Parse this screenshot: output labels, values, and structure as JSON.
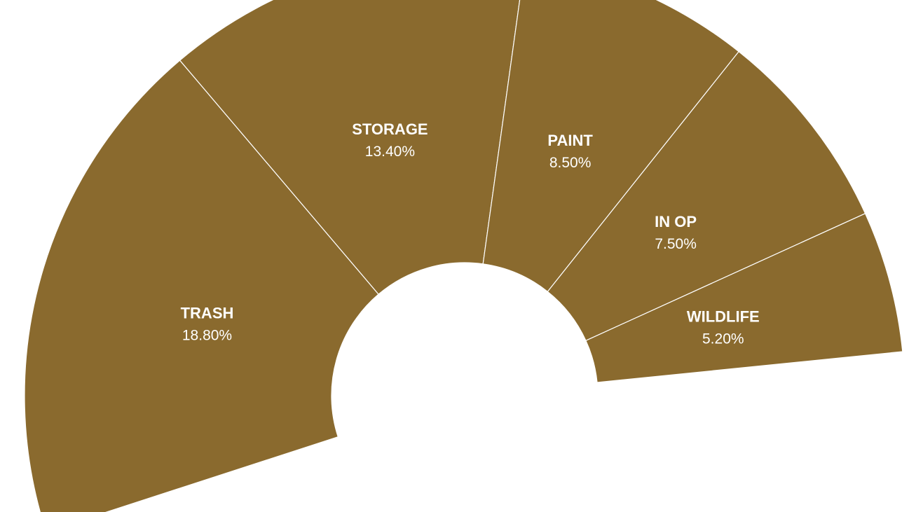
{
  "chart_data": {
    "type": "pie",
    "variant": "partial-donut",
    "color": "#8a6a2e",
    "categories": [
      "TRASH",
      "STORAGE",
      "PAINT",
      "IN OP",
      "WILDLIFE"
    ],
    "values": [
      18.8,
      13.4,
      8.5,
      7.5,
      5.2
    ],
    "value_labels": [
      "18.80%",
      "13.40%",
      "8.50%",
      "7.50%",
      "5.20%"
    ]
  }
}
